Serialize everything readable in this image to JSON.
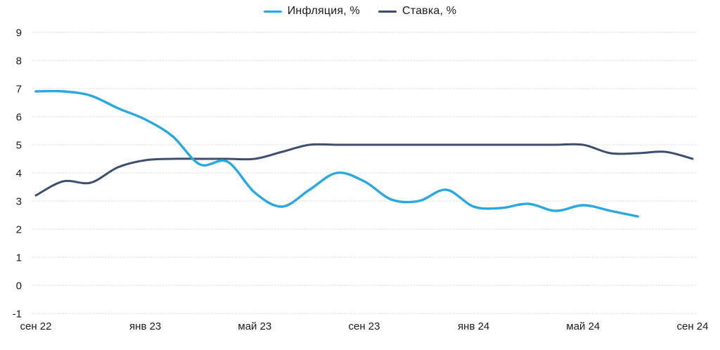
{
  "chart_data": {
    "type": "line",
    "title": "",
    "grid": "horizontal-dashed",
    "legend_position": "top-center",
    "ylim": [
      -1,
      9
    ],
    "yticks": [
      9,
      8,
      7,
      6,
      5,
      4,
      3,
      2,
      1,
      0,
      -1
    ],
    "x_unit": "months",
    "x_count": 25,
    "xticks": [
      {
        "pos": 0,
        "label": "сен 22"
      },
      {
        "pos": 4,
        "label": "янв 23"
      },
      {
        "pos": 8,
        "label": "май 23"
      },
      {
        "pos": 12,
        "label": "сен 23"
      },
      {
        "pos": 16,
        "label": "янв 24"
      },
      {
        "pos": 20,
        "label": "май 24"
      },
      {
        "pos": 24,
        "label": "сен 24"
      }
    ],
    "series": [
      {
        "name": "Инфляция, %",
        "color": "#29A8E0",
        "stroke_width": 3.4,
        "values": [
          6.9,
          6.9,
          6.75,
          6.3,
          5.9,
          5.3,
          4.3,
          4.4,
          3.3,
          2.8,
          3.4,
          4.0,
          3.7,
          3.05,
          3.0,
          3.4,
          2.8,
          2.75,
          2.9,
          2.65,
          2.85,
          2.65,
          2.45
        ]
      },
      {
        "name": "Ставка, %",
        "color": "#3E4E6C",
        "stroke_width": 3.0,
        "values": [
          3.2,
          3.7,
          3.65,
          4.2,
          4.45,
          4.5,
          4.5,
          4.5,
          4.5,
          4.75,
          5.0,
          5.0,
          5.0,
          5.0,
          5.0,
          5.0,
          5.0,
          5.0,
          5.0,
          5.0,
          5.0,
          4.7,
          4.7,
          4.75,
          4.5
        ]
      }
    ],
    "gridline_color": "#DBDBDB",
    "text_color": "#1a1a1a"
  },
  "legend": {
    "items": [
      {
        "label": "Инфляция, %",
        "color": "#29A8E0"
      },
      {
        "label": "Ставка, %",
        "color": "#3E4E6C"
      }
    ]
  }
}
